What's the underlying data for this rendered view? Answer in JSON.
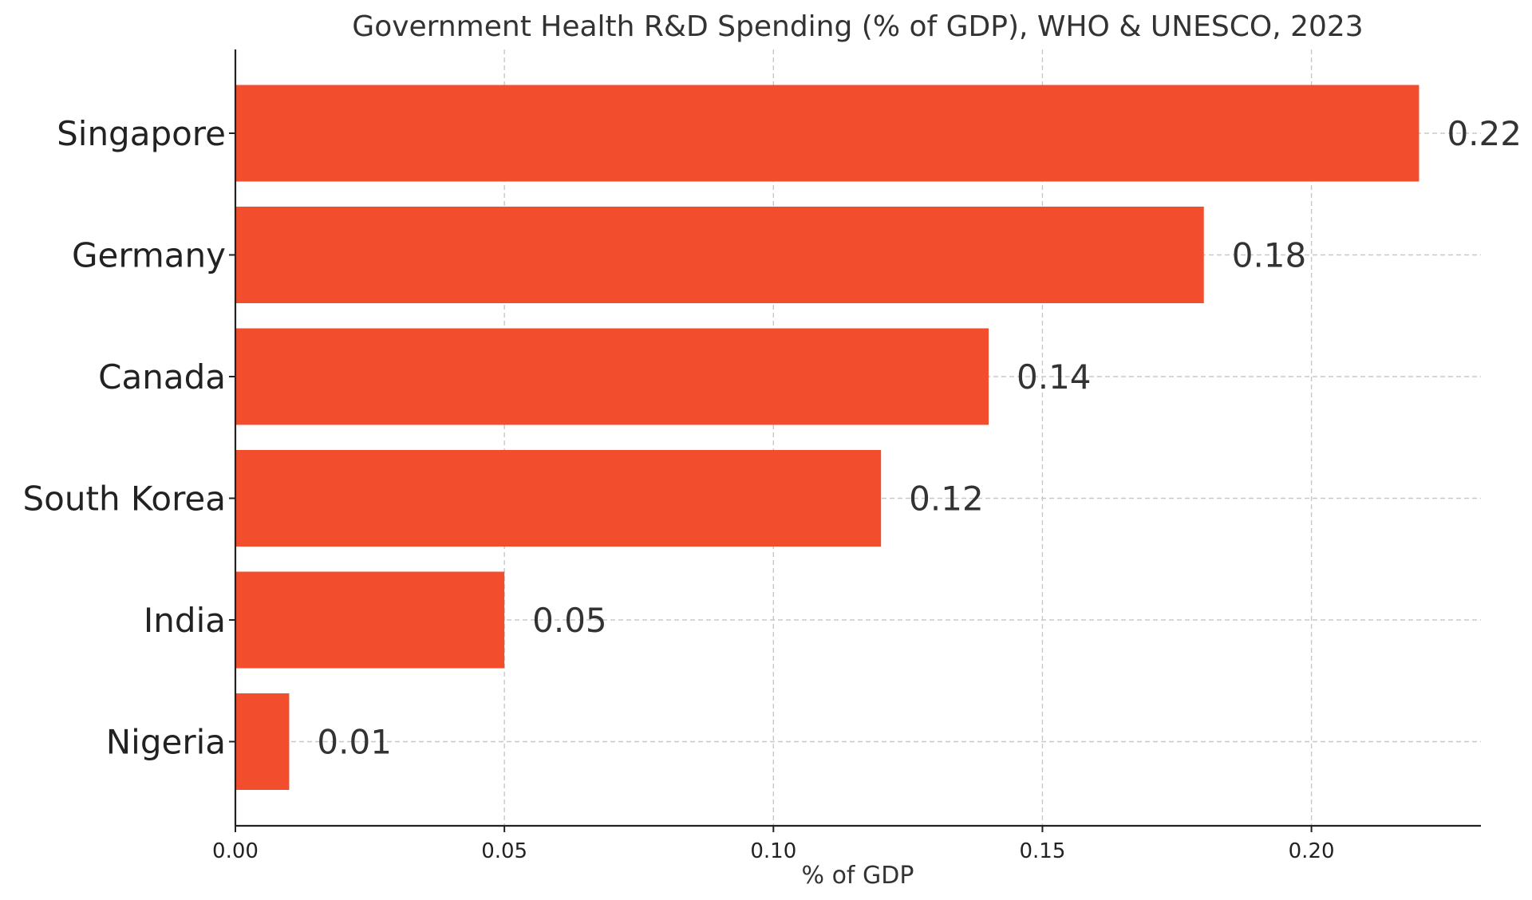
{
  "chart_data": {
    "type": "bar",
    "orientation": "horizontal",
    "title": "Government Health R&D Spending (% of GDP), WHO & UNESCO, 2023",
    "xlabel": "% of GDP",
    "ylabel": "",
    "categories": [
      "Singapore",
      "Germany",
      "Canada",
      "South Korea",
      "India",
      "Nigeria"
    ],
    "values": [
      0.22,
      0.18,
      0.14,
      0.12,
      0.05,
      0.01
    ],
    "value_labels": [
      "0.22",
      "0.18",
      "0.14",
      "0.12",
      "0.05",
      "0.01"
    ],
    "xlim": [
      0,
      0.2315
    ],
    "x_ticks": [
      0.0,
      0.05,
      0.1,
      0.15,
      0.2
    ],
    "x_tick_labels": [
      "0.00",
      "0.05",
      "0.10",
      "0.15",
      "0.20"
    ],
    "grid": true,
    "legend": "none",
    "bar_color": "#f24e2e"
  }
}
